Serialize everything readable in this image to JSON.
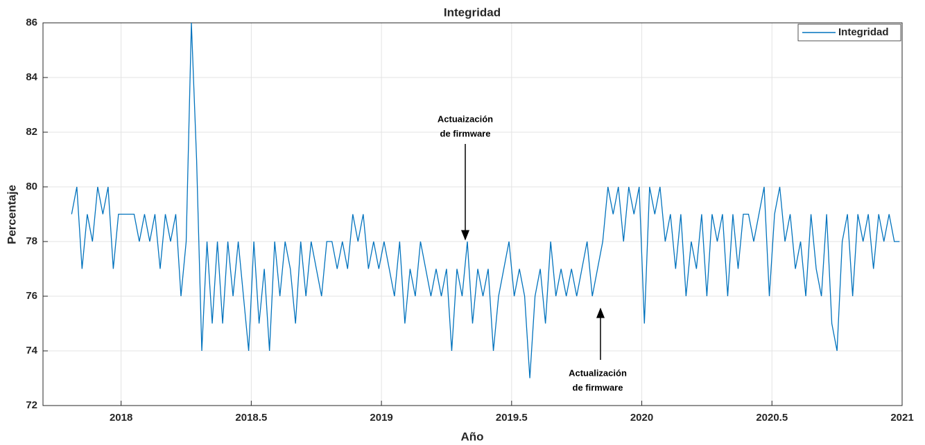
{
  "chart_data": {
    "type": "line",
    "title": "Integridad",
    "x_label": "Año",
    "y_label": "Percentaje",
    "x": [
      2017.81,
      2017.83,
      2017.85,
      2017.87,
      2017.89,
      2017.91,
      2017.93,
      2017.95,
      2017.97,
      2017.99,
      2018.01,
      2018.03,
      2018.05,
      2018.07,
      2018.09,
      2018.11,
      2018.13,
      2018.15,
      2018.17,
      2018.19,
      2018.21,
      2018.23,
      2018.25,
      2018.27,
      2018.29,
      2018.31,
      2018.33,
      2018.35,
      2018.37,
      2018.39,
      2018.41,
      2018.43,
      2018.45,
      2018.47,
      2018.49,
      2018.51,
      2018.53,
      2018.55,
      2018.57,
      2018.59,
      2018.61,
      2018.63,
      2018.65,
      2018.67,
      2018.69,
      2018.71,
      2018.73,
      2018.75,
      2018.77,
      2018.79,
      2018.81,
      2018.83,
      2018.85,
      2018.87,
      2018.89,
      2018.91,
      2018.93,
      2018.95,
      2018.97,
      2018.99,
      2019.01,
      2019.03,
      2019.05,
      2019.07,
      2019.09,
      2019.11,
      2019.13,
      2019.15,
      2019.17,
      2019.19,
      2019.21,
      2019.23,
      2019.25,
      2019.27,
      2019.29,
      2019.31,
      2019.33,
      2019.35,
      2019.37,
      2019.39,
      2019.41,
      2019.43,
      2019.45,
      2019.47,
      2019.49,
      2019.51,
      2019.53,
      2019.55,
      2019.57,
      2019.59,
      2019.61,
      2019.63,
      2019.65,
      2019.67,
      2019.69,
      2019.71,
      2019.73,
      2019.75,
      2019.77,
      2019.79,
      2019.81,
      2019.83,
      2019.85,
      2019.87,
      2019.89,
      2019.91,
      2019.93,
      2019.95,
      2019.97,
      2019.99,
      2020.01,
      2020.03,
      2020.05,
      2020.07,
      2020.09,
      2020.11,
      2020.13,
      2020.15,
      2020.17,
      2020.19,
      2020.21,
      2020.23,
      2020.25,
      2020.27,
      2020.29,
      2020.31,
      2020.33,
      2020.35,
      2020.37,
      2020.39,
      2020.41,
      2020.43,
      2020.45,
      2020.47,
      2020.49,
      2020.51,
      2020.53,
      2020.55,
      2020.57,
      2020.59,
      2020.61,
      2020.63,
      2020.65,
      2020.67,
      2020.69,
      2020.71,
      2020.73,
      2020.75,
      2020.77,
      2020.79,
      2020.81,
      2020.83,
      2020.85,
      2020.87,
      2020.89,
      2020.91,
      2020.93,
      2020.95,
      2020.97,
      2020.99
    ],
    "series": [
      {
        "name": "Integridad",
        "color": "#0072bd",
        "values": [
          79,
          80,
          77,
          79,
          78,
          80,
          79,
          80,
          77,
          79,
          79,
          79,
          79,
          78,
          79,
          78,
          79,
          77,
          79,
          78,
          79,
          76,
          78,
          86,
          81,
          74,
          78,
          75,
          78,
          75,
          78,
          76,
          78,
          76,
          74,
          78,
          75,
          77,
          74,
          78,
          76,
          78,
          77,
          75,
          78,
          76,
          78,
          77,
          76,
          78,
          78,
          77,
          78,
          77,
          79,
          78,
          79,
          77,
          78,
          77,
          78,
          77,
          76,
          78,
          75,
          77,
          76,
          78,
          77,
          76,
          77,
          76,
          77,
          74,
          77,
          76,
          78,
          75,
          77,
          76,
          77,
          74,
          76,
          77,
          78,
          76,
          77,
          76,
          73,
          76,
          77,
          75,
          78,
          76,
          77,
          76,
          77,
          76,
          77,
          78,
          76,
          77,
          78,
          80,
          79,
          80,
          78,
          80,
          79,
          80,
          75,
          80,
          79,
          80,
          78,
          79,
          77,
          79,
          76,
          78,
          77,
          79,
          76,
          79,
          78,
          79,
          76,
          79,
          77,
          79,
          79,
          78,
          79,
          80,
          76,
          79,
          80,
          78,
          79,
          77,
          78,
          76,
          79,
          77,
          76,
          79,
          75,
          74,
          78,
          79,
          76,
          79,
          78,
          79,
          77,
          79,
          78,
          79,
          78,
          78
        ]
      }
    ],
    "xlim": [
      2017.7,
      2021
    ],
    "xticks": [
      2018,
      2018.5,
      2019,
      2019.5,
      2020,
      2020.5,
      2021
    ],
    "ylim": [
      72,
      86
    ],
    "yticks": [
      72,
      74,
      76,
      78,
      80,
      82,
      84,
      86
    ],
    "grid": true,
    "legend": "upper right",
    "annotations": [
      {
        "lines": [
          "Actuaización",
          "de firmware"
        ]
      },
      {
        "lines": [
          "Actualización",
          "de firmware"
        ]
      }
    ]
  }
}
